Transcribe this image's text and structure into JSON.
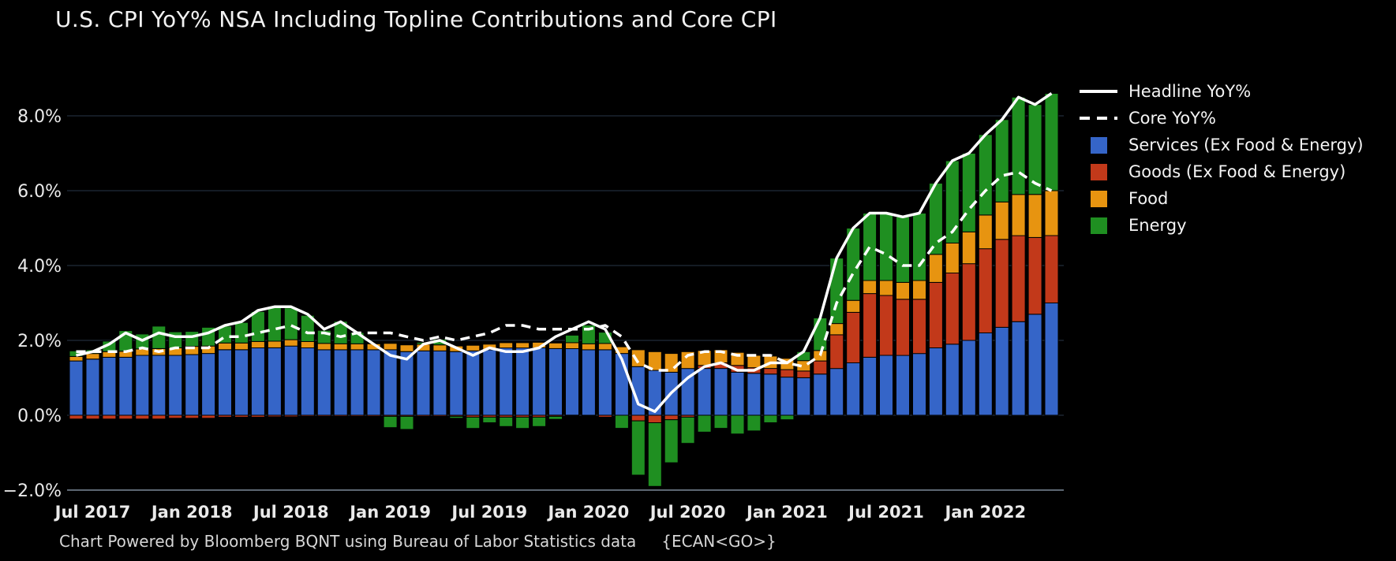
{
  "title": "U.S. CPI YoY% NSA Including Topline Contributions and Core CPI",
  "footer": {
    "text": "Chart Powered by Bloomberg BQNT using Bureau of Labor Statistics data",
    "code": "{ECAN<GO>}"
  },
  "colors": {
    "background": "#000000",
    "services": "#3565c8",
    "goods": "#c2391a",
    "food": "#e79410",
    "energy": "#1f8f21",
    "line": "#ffffff",
    "grid": "#1b2430",
    "axis_bottom": "#5d6773",
    "tick_text": "#eaeaea"
  },
  "legend": {
    "items": [
      {
        "label": "Headline YoY%",
        "swatch": "line",
        "color": "#ffffff"
      },
      {
        "label": "Core YoY%",
        "swatch": "dash",
        "color": "#ffffff"
      },
      {
        "label": "Services (Ex Food & Energy)",
        "swatch": "square",
        "color": "#3565c8"
      },
      {
        "label": "Goods (Ex Food & Energy)",
        "swatch": "square",
        "color": "#c2391a"
      },
      {
        "label": "Food",
        "swatch": "square",
        "color": "#e79410"
      },
      {
        "label": "Energy",
        "swatch": "square",
        "color": "#1f8f21"
      }
    ]
  },
  "chart_data": {
    "type": "bar",
    "subtype": "stacked bars (contributions) with line overlays",
    "grid": "horizontal",
    "legend_position": "right",
    "ylim": [
      -2.6,
      9.0
    ],
    "y_ticks": [
      {
        "value": 8,
        "label": "8.0%"
      },
      {
        "value": 6,
        "label": "6.0%"
      },
      {
        "value": 4,
        "label": "4.0%"
      },
      {
        "value": 2,
        "label": "2.0%"
      },
      {
        "value": 0,
        "label": "0.0%"
      },
      {
        "value": -2,
        "label": "−2.0%"
      }
    ],
    "x": [
      "Jun 2017",
      "Jul 2017",
      "Aug 2017",
      "Sep 2017",
      "Oct 2017",
      "Nov 2017",
      "Dec 2017",
      "Jan 2018",
      "Feb 2018",
      "Mar 2018",
      "Apr 2018",
      "May 2018",
      "Jun 2018",
      "Jul 2018",
      "Aug 2018",
      "Sep 2018",
      "Oct 2018",
      "Nov 2018",
      "Dec 2018",
      "Jan 2019",
      "Feb 2019",
      "Mar 2019",
      "Apr 2019",
      "May 2019",
      "Jun 2019",
      "Jul 2019",
      "Aug 2019",
      "Sep 2019",
      "Oct 2019",
      "Nov 2019",
      "Dec 2019",
      "Jan 2020",
      "Feb 2020",
      "Mar 2020",
      "Apr 2020",
      "May 2020",
      "Jun 2020",
      "Jul 2020",
      "Aug 2020",
      "Sep 2020",
      "Oct 2020",
      "Nov 2020",
      "Dec 2020",
      "Jan 2021",
      "Feb 2021",
      "Mar 2021",
      "Apr 2021",
      "May 2021",
      "Jun 2021",
      "Jul 2021",
      "Aug 2021",
      "Sep 2021",
      "Oct 2021",
      "Nov 2021",
      "Dec 2021",
      "Jan 2022",
      "Feb 2022",
      "Mar 2022",
      "Apr 2022",
      "May 2022"
    ],
    "x_tick_labels": [
      "Jul 2017",
      "Jan 2018",
      "Jul 2018",
      "Jan 2019",
      "Jul 2019",
      "Jan 2020",
      "Jul 2020",
      "Jan 2021",
      "Jul 2021",
      "Jan 2022"
    ],
    "x_tick_indices": [
      1,
      7,
      13,
      19,
      25,
      31,
      37,
      43,
      49,
      55
    ],
    "series": [
      {
        "name": "Services (Ex Food & Energy)",
        "type": "bar",
        "color": "#3565c8",
        "values": [
          1.45,
          1.5,
          1.55,
          1.55,
          1.6,
          1.6,
          1.6,
          1.62,
          1.65,
          1.75,
          1.75,
          1.8,
          1.8,
          1.85,
          1.8,
          1.75,
          1.75,
          1.75,
          1.75,
          1.75,
          1.7,
          1.72,
          1.72,
          1.7,
          1.72,
          1.75,
          1.8,
          1.8,
          1.8,
          1.78,
          1.78,
          1.75,
          1.75,
          1.65,
          1.3,
          1.2,
          1.15,
          1.25,
          1.25,
          1.25,
          1.15,
          1.12,
          1.1,
          1.02,
          1.0,
          1.1,
          1.25,
          1.4,
          1.55,
          1.6,
          1.6,
          1.65,
          1.8,
          1.9,
          2.0,
          2.2,
          2.35,
          2.5,
          2.7,
          3.0
        ]
      },
      {
        "name": "Goods (Ex Food & Energy)",
        "type": "bar",
        "color": "#c2391a",
        "values": [
          -0.1,
          -0.1,
          -0.1,
          -0.1,
          -0.1,
          -0.1,
          -0.08,
          -0.08,
          -0.08,
          -0.05,
          -0.05,
          -0.05,
          -0.04,
          -0.04,
          -0.03,
          -0.03,
          -0.03,
          -0.03,
          -0.03,
          -0.03,
          -0.03,
          -0.03,
          -0.03,
          -0.03,
          -0.05,
          -0.05,
          -0.05,
          -0.05,
          -0.05,
          -0.03,
          -0.02,
          -0.02,
          -0.05,
          0.0,
          -0.15,
          -0.2,
          -0.12,
          -0.05,
          0.08,
          0.15,
          0.18,
          0.15,
          0.15,
          0.2,
          0.18,
          0.35,
          0.9,
          1.35,
          1.7,
          1.6,
          1.5,
          1.45,
          1.75,
          1.9,
          2.05,
          2.25,
          2.35,
          2.3,
          2.05,
          1.8
        ]
      },
      {
        "name": "Food",
        "type": "bar",
        "color": "#e79410",
        "values": [
          0.12,
          0.15,
          0.15,
          0.16,
          0.17,
          0.18,
          0.2,
          0.22,
          0.2,
          0.18,
          0.18,
          0.17,
          0.18,
          0.17,
          0.17,
          0.17,
          0.16,
          0.16,
          0.16,
          0.17,
          0.18,
          0.18,
          0.16,
          0.15,
          0.15,
          0.15,
          0.14,
          0.14,
          0.15,
          0.15,
          0.16,
          0.16,
          0.17,
          0.18,
          0.45,
          0.5,
          0.5,
          0.45,
          0.4,
          0.35,
          0.35,
          0.33,
          0.33,
          0.3,
          0.28,
          0.28,
          0.3,
          0.32,
          0.35,
          0.4,
          0.45,
          0.5,
          0.75,
          0.8,
          0.85,
          0.9,
          1.0,
          1.1,
          1.15,
          1.2
        ]
      },
      {
        "name": "Energy",
        "type": "bar",
        "color": "#1f8f21",
        "values": [
          0.15,
          0.1,
          0.28,
          0.55,
          0.4,
          0.6,
          0.43,
          0.4,
          0.5,
          0.45,
          0.55,
          0.8,
          0.9,
          0.85,
          0.7,
          0.35,
          0.6,
          0.3,
          0.0,
          -0.3,
          -0.35,
          0.05,
          0.15,
          -0.05,
          -0.3,
          -0.15,
          -0.25,
          -0.3,
          -0.25,
          -0.08,
          0.2,
          0.5,
          0.3,
          -0.35,
          -1.45,
          -1.7,
          -1.15,
          -0.7,
          -0.45,
          -0.35,
          -0.5,
          -0.42,
          -0.2,
          -0.12,
          0.24,
          0.87,
          1.75,
          1.93,
          1.8,
          1.8,
          1.75,
          1.8,
          1.9,
          2.2,
          2.1,
          2.15,
          2.2,
          2.6,
          2.4,
          2.6
        ]
      },
      {
        "name": "Headline YoY%",
        "type": "line",
        "style": "solid",
        "color": "#ffffff",
        "values": [
          1.6,
          1.7,
          1.9,
          2.2,
          2.0,
          2.2,
          2.1,
          2.1,
          2.2,
          2.4,
          2.5,
          2.8,
          2.9,
          2.9,
          2.7,
          2.3,
          2.5,
          2.2,
          1.9,
          1.6,
          1.5,
          1.9,
          2.0,
          1.8,
          1.6,
          1.8,
          1.7,
          1.7,
          1.8,
          2.1,
          2.3,
          2.5,
          2.3,
          1.5,
          0.3,
          0.1,
          0.6,
          1.0,
          1.3,
          1.4,
          1.2,
          1.2,
          1.4,
          1.4,
          1.7,
          2.6,
          4.2,
          5.0,
          5.4,
          5.4,
          5.3,
          5.4,
          6.2,
          6.8,
          7.0,
          7.5,
          7.9,
          8.5,
          8.3,
          8.6
        ]
      },
      {
        "name": "Core YoY%",
        "type": "line",
        "style": "dashed",
        "color": "#ffffff",
        "values": [
          1.7,
          1.7,
          1.7,
          1.7,
          1.8,
          1.7,
          1.8,
          1.8,
          1.8,
          2.1,
          2.1,
          2.2,
          2.3,
          2.4,
          2.2,
          2.2,
          2.1,
          2.2,
          2.2,
          2.2,
          2.1,
          2.0,
          2.1,
          2.0,
          2.1,
          2.2,
          2.4,
          2.4,
          2.3,
          2.3,
          2.3,
          2.3,
          2.4,
          2.1,
          1.4,
          1.2,
          1.2,
          1.6,
          1.7,
          1.7,
          1.6,
          1.6,
          1.6,
          1.4,
          1.3,
          1.6,
          3.0,
          3.8,
          4.5,
          4.3,
          4.0,
          4.0,
          4.6,
          4.9,
          5.5,
          6.0,
          6.4,
          6.5,
          6.2,
          6.0
        ]
      }
    ]
  }
}
